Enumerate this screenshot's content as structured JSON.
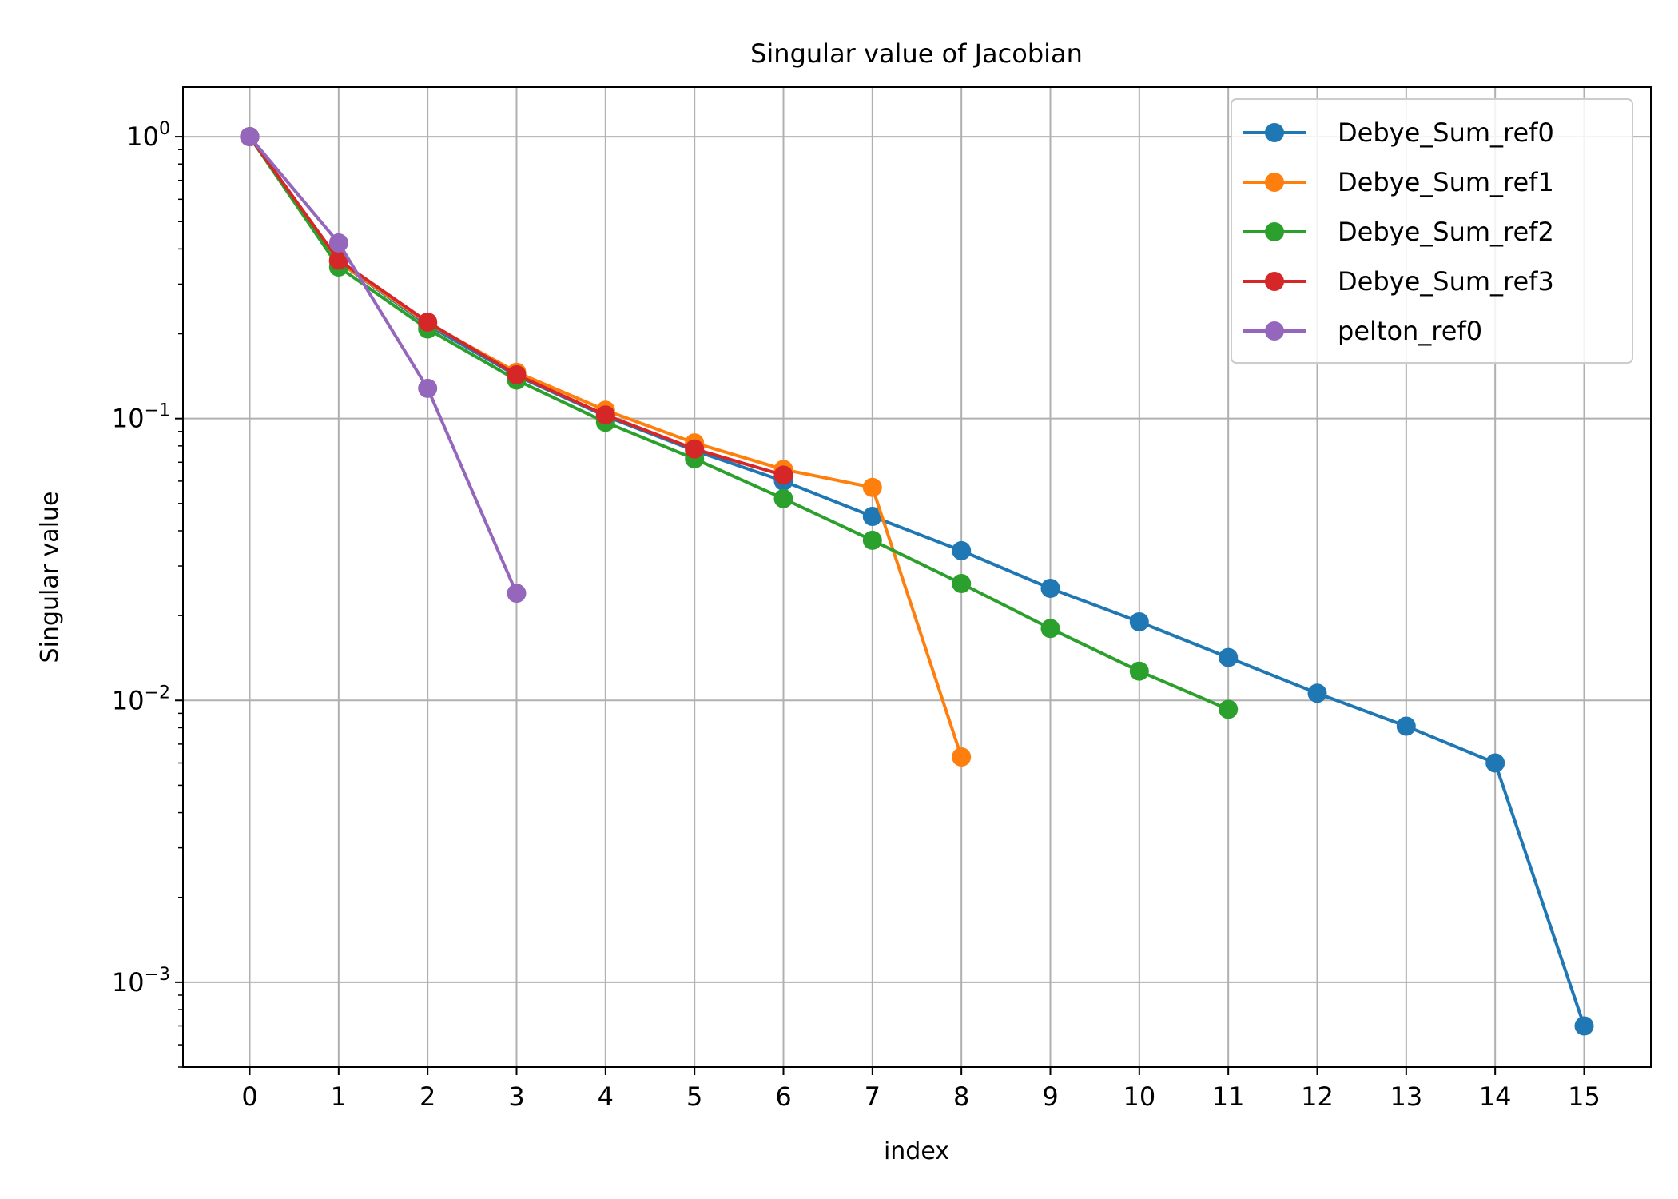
{
  "chart_data": {
    "type": "line",
    "title": "Singular value of Jacobian",
    "xlabel": "index",
    "ylabel": "Singular value",
    "yscale": "log",
    "ylim": [
      0.0005,
      1.5
    ],
    "xlim": [
      -0.75,
      15.75
    ],
    "grid": true,
    "legend_position": "top-right",
    "x_ticks": [
      "0",
      "1",
      "2",
      "3",
      "4",
      "5",
      "6",
      "7",
      "8",
      "9",
      "10",
      "11",
      "12",
      "13",
      "14",
      "15"
    ],
    "y_ticks": [
      {
        "value": 1,
        "base": "10",
        "exp": "0"
      },
      {
        "value": 0.1,
        "base": "10",
        "exp": "−1"
      },
      {
        "value": 0.01,
        "base": "10",
        "exp": "−2"
      },
      {
        "value": 0.001,
        "base": "10",
        "exp": "−3"
      }
    ],
    "series": [
      {
        "name": "Debye_Sum_ref0",
        "color": "#1f77b4",
        "x": [
          0,
          1,
          2,
          3,
          4,
          5,
          6,
          7,
          8,
          9,
          10,
          11,
          12,
          13,
          14,
          15
        ],
        "y": [
          1.0,
          0.36,
          0.215,
          0.142,
          0.102,
          0.077,
          0.06,
          0.045,
          0.034,
          0.025,
          0.019,
          0.0142,
          0.0106,
          0.0081,
          0.006,
          0.0007
        ]
      },
      {
        "name": "Debye_Sum_ref1",
        "color": "#ff7f0e",
        "x": [
          0,
          1,
          2,
          3,
          4,
          5,
          6,
          7,
          8
        ],
        "y": [
          1.0,
          0.36,
          0.218,
          0.146,
          0.107,
          0.082,
          0.066,
          0.057,
          0.0063
        ]
      },
      {
        "name": "Debye_Sum_ref2",
        "color": "#2ca02c",
        "x": [
          0,
          1,
          2,
          3,
          4,
          5,
          6,
          7,
          8,
          9,
          10,
          11
        ],
        "y": [
          1.0,
          0.345,
          0.208,
          0.137,
          0.097,
          0.072,
          0.052,
          0.037,
          0.026,
          0.018,
          0.0127,
          0.0093
        ]
      },
      {
        "name": "Debye_Sum_ref3",
        "color": "#d62728",
        "x": [
          0,
          1,
          2,
          3,
          4,
          5,
          6
        ],
        "y": [
          1.0,
          0.365,
          0.22,
          0.143,
          0.103,
          0.078,
          0.063
        ]
      },
      {
        "name": "pelton_ref0",
        "color": "#9467bd",
        "x": [
          0,
          1,
          2,
          3
        ],
        "y": [
          1.0,
          0.42,
          0.128,
          0.024
        ]
      }
    ]
  }
}
